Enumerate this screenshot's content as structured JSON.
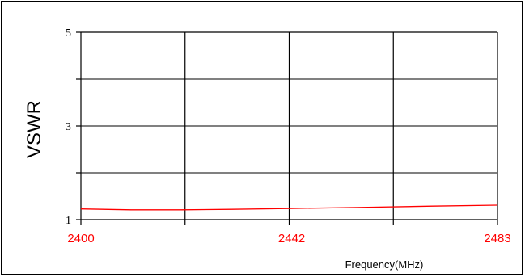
{
  "chart_data": {
    "type": "line",
    "title": "",
    "xlabel": "Frequency(MHz)",
    "ylabel": "VSWR",
    "xlim": [
      2400,
      2483
    ],
    "ylim": [
      1,
      5
    ],
    "x_ticks": [
      2400,
      2442,
      2483
    ],
    "y_ticks": [
      1,
      3,
      5
    ],
    "grid": true,
    "legend": "none",
    "tick_label_color_x": "#ff0000",
    "line_color": "#ff0000",
    "series": [
      {
        "x": [
          2400,
          2410,
          2420,
          2430,
          2442,
          2455,
          2470,
          2483
        ],
        "y": [
          1.23,
          1.21,
          1.21,
          1.22,
          1.24,
          1.26,
          1.29,
          1.31
        ]
      }
    ]
  }
}
